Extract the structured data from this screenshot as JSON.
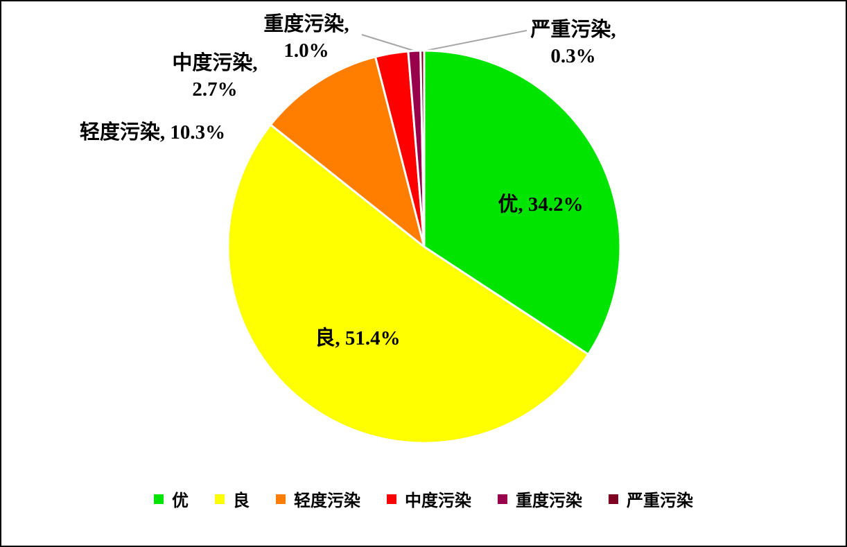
{
  "chart_data": {
    "type": "pie",
    "categories": [
      "优",
      "良",
      "轻度污染",
      "中度污染",
      "重度污染",
      "严重污染"
    ],
    "values": [
      34.2,
      51.4,
      10.3,
      2.7,
      1.0,
      0.3
    ],
    "value_labels": [
      "优, 34.2%",
      "良, 51.4%",
      "轻度污染, 10.3%",
      "中度污染, 2.7%",
      "重度污染, 1.0%",
      "严重污染, 0.3%"
    ],
    "colors": [
      "#00e400",
      "#ffff00",
      "#ff7e00",
      "#ff0000",
      "#99004c",
      "#7e0023"
    ],
    "legend": "bottom"
  }
}
